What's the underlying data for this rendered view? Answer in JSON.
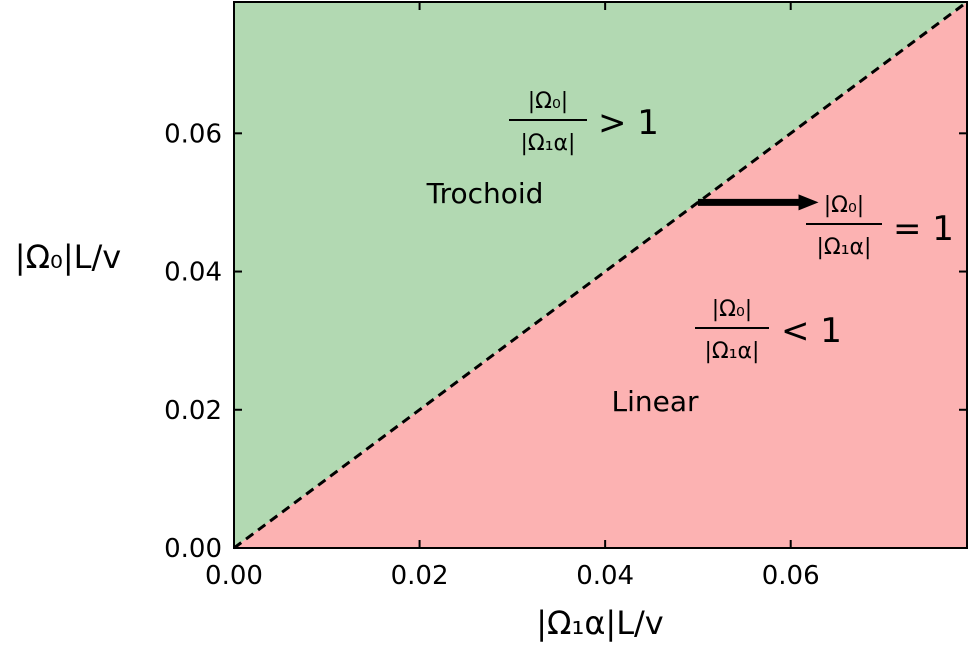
{
  "chart_data": {
    "type": "area",
    "xlabel": "|Ω₁α|L/v",
    "ylabel": "|Ω₀|L/v",
    "xlim": [
      0.0,
      0.079
    ],
    "ylim": [
      0.0,
      0.079
    ],
    "x_ticks": [
      0.0,
      0.02,
      0.04,
      0.06
    ],
    "y_ticks": [
      0.0,
      0.02,
      0.04,
      0.06
    ],
    "x_tick_labels": [
      "0.00",
      "0.02",
      "0.04",
      "0.06"
    ],
    "y_tick_labels": [
      "0.00",
      "0.02",
      "0.04",
      "0.06"
    ],
    "boundary": {
      "x": [
        0.0,
        0.079
      ],
      "y": [
        0.0,
        0.079
      ],
      "style": "dashed",
      "color": "#000000"
    },
    "regions": [
      {
        "name": "Trochoid",
        "side": "above",
        "color": "#b2d9b2",
        "condition": {
          "numerator": "|Ω₀|",
          "denominator": "|Ω₁α|",
          "relation": "> 1"
        }
      },
      {
        "name": "Linear",
        "side": "below",
        "color": "#fcb2b2",
        "condition": {
          "numerator": "|Ω₀|",
          "denominator": "|Ω₁α|",
          "relation": "< 1"
        }
      }
    ],
    "annotation": {
      "numerator": "|Ω₀|",
      "denominator": "|Ω₁α|",
      "relation": "= 1",
      "arrow_from": [
        0.05,
        0.05
      ],
      "arrow_to": [
        0.063,
        0.05
      ]
    },
    "grid": false
  }
}
